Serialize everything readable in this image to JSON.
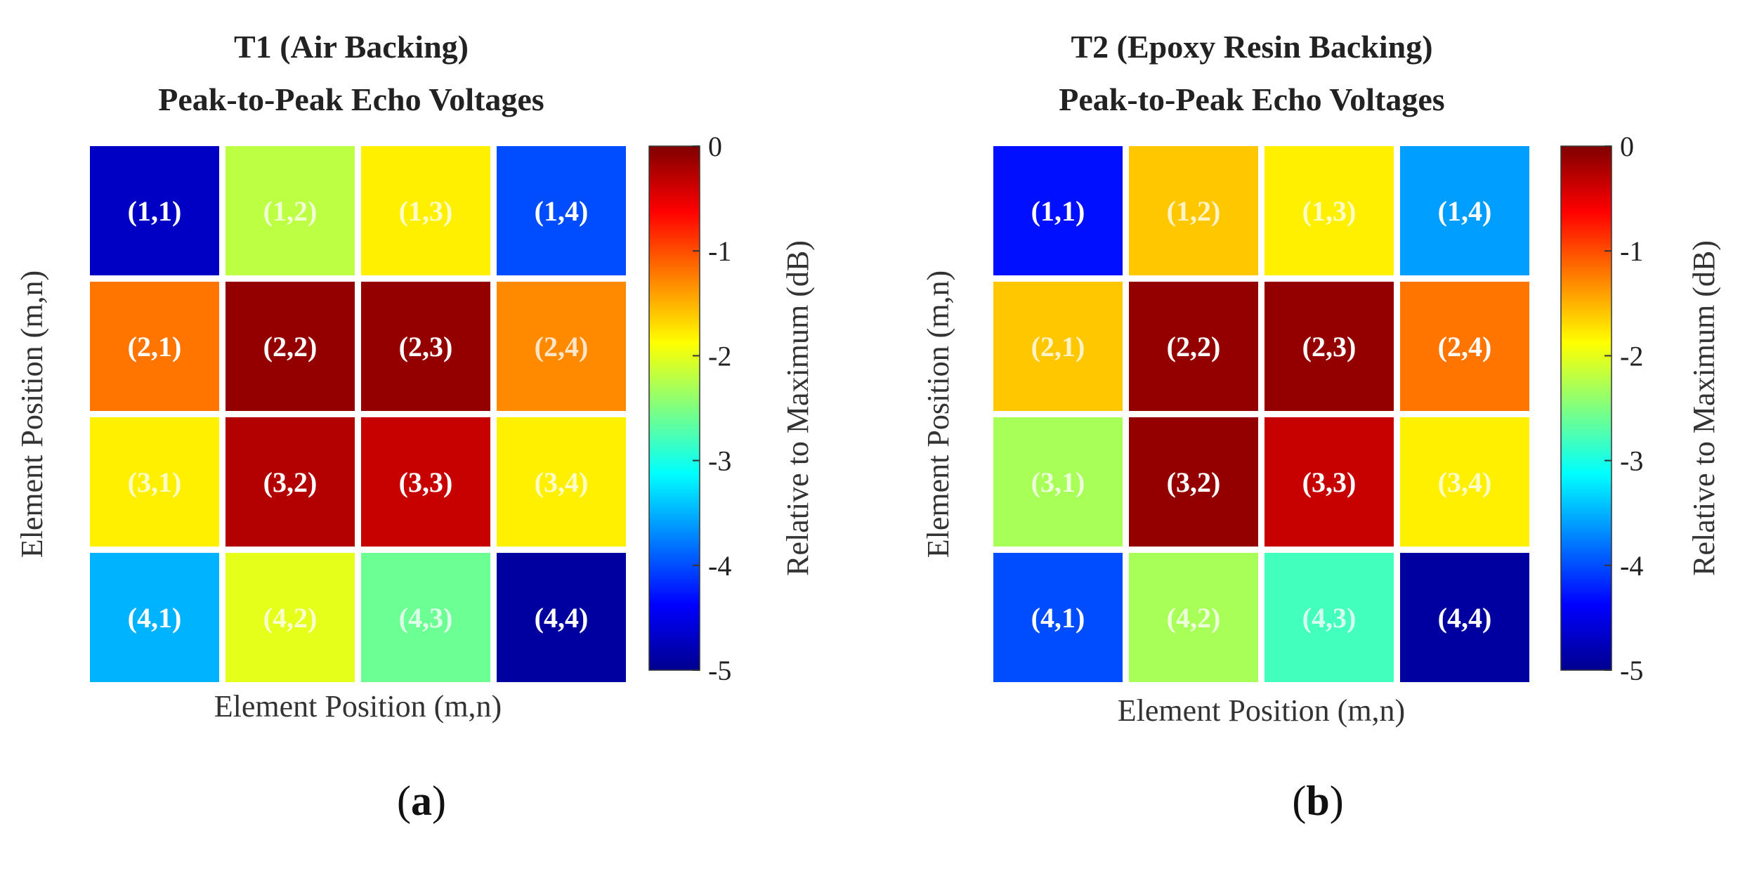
{
  "chart_data": [
    {
      "type": "heatmap",
      "panel_label": "a",
      "title": [
        "T1 (Air Backing)",
        "Peak-to-Peak Echo Voltages"
      ],
      "xlabel": "Element Position (m,n)",
      "ylabel": "Element Position (m,n)",
      "colorbar": {
        "label": "Relative to Maximum (dB)",
        "colormap": "jet",
        "range": [
          -5,
          0
        ],
        "ticks": [
          "0",
          "-1",
          "-2",
          "-3",
          "-4",
          "-5"
        ]
      },
      "cell_labels": [
        [
          "(1,1)",
          "(1,2)",
          "(1,3)",
          "(1,4)"
        ],
        [
          "(2,1)",
          "(2,2)",
          "(2,3)",
          "(2,4)"
        ],
        [
          "(3,1)",
          "(3,2)",
          "(3,3)",
          "(3,4)"
        ],
        [
          "(4,1)",
          "(4,2)",
          "(4,3)",
          "(4,4)"
        ]
      ],
      "values_db": [
        [
          -4.7,
          -2.2,
          -1.8,
          -4.0
        ],
        [
          -1.2,
          -0.1,
          -0.1,
          -1.3
        ],
        [
          -1.8,
          -0.25,
          -0.35,
          -1.8
        ],
        [
          -3.5,
          -2.0,
          -2.6,
          -4.9
        ]
      ]
    },
    {
      "type": "heatmap",
      "panel_label": "b",
      "title": [
        "T2 (Epoxy Resin Backing)",
        "Peak-to-Peak Echo Voltages"
      ],
      "xlabel": "Element Position (m,n)",
      "ylabel": "Element Position (m,n)",
      "colorbar": {
        "label": "Relative to Maximum (dB)",
        "colormap": "jet",
        "range": [
          -5,
          0
        ],
        "ticks": [
          "0",
          "-1",
          "-2",
          "-3",
          "-4",
          "-5"
        ]
      },
      "cell_labels": [
        [
          "(1,1)",
          "(1,2)",
          "(1,3)",
          "(1,4)"
        ],
        [
          "(2,1)",
          "(2,2)",
          "(2,3)",
          "(2,4)"
        ],
        [
          "(3,1)",
          "(3,2)",
          "(3,3)",
          "(3,4)"
        ],
        [
          "(4,1)",
          "(4,2)",
          "(4,3)",
          "(4,4)"
        ]
      ],
      "values_db": [
        [
          -4.3,
          -1.6,
          -1.8,
          -3.6
        ],
        [
          -1.6,
          -0.1,
          -0.1,
          -1.2
        ],
        [
          -2.3,
          -0.1,
          -0.35,
          -1.8
        ],
        [
          -4.0,
          -2.3,
          -2.8,
          -4.9
        ]
      ]
    }
  ]
}
